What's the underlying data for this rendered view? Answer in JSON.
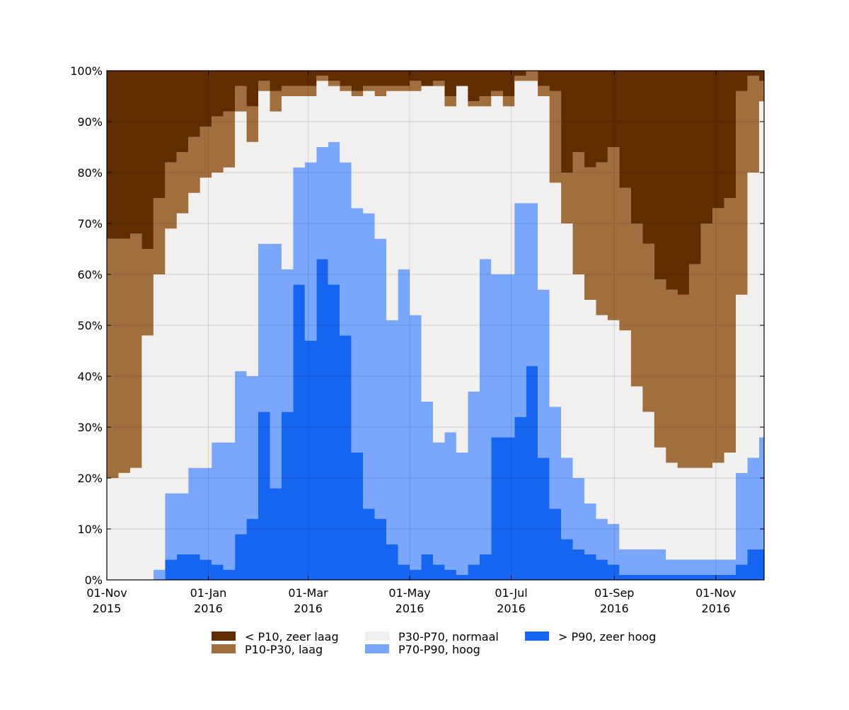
{
  "chart_data": {
    "type": "area",
    "stacked": true,
    "normalized_percent": true,
    "y_tick_labels": [
      "0%",
      "10%",
      "20%",
      "30%",
      "40%",
      "50%",
      "60%",
      "70%",
      "80%",
      "90%",
      "100%"
    ],
    "ylim": [
      0,
      100
    ],
    "xlim": [
      "2015-11-01",
      "2016-11-30"
    ],
    "x_ticks": [
      {
        "date": "2015-11-01",
        "line1": "01-Nov",
        "line2": "2015"
      },
      {
        "date": "2016-01-01",
        "line1": "01-Jan",
        "line2": "2016"
      },
      {
        "date": "2016-03-01",
        "line1": "01-Mar",
        "line2": "2016"
      },
      {
        "date": "2016-05-01",
        "line1": "01-May",
        "line2": "2016"
      },
      {
        "date": "2016-07-01",
        "line1": "01-Jul",
        "line2": "2016"
      },
      {
        "date": "2016-09-01",
        "line1": "01-Sep",
        "line2": "2016"
      },
      {
        "date": "2016-11-01",
        "line1": "01-Nov",
        "line2": "2016"
      }
    ],
    "grid": true,
    "legend_position": "bottom-center",
    "x": [
      "2015-11-01",
      "2015-11-08",
      "2015-11-15",
      "2015-11-22",
      "2015-11-29",
      "2015-12-06",
      "2015-12-13",
      "2015-12-20",
      "2015-12-27",
      "2016-01-03",
      "2016-01-10",
      "2016-01-17",
      "2016-01-24",
      "2016-01-31",
      "2016-02-07",
      "2016-02-14",
      "2016-02-21",
      "2016-02-28",
      "2016-03-06",
      "2016-03-13",
      "2016-03-20",
      "2016-03-27",
      "2016-04-03",
      "2016-04-10",
      "2016-04-17",
      "2016-04-24",
      "2016-05-01",
      "2016-05-08",
      "2016-05-15",
      "2016-05-22",
      "2016-05-29",
      "2016-06-05",
      "2016-06-12",
      "2016-06-19",
      "2016-06-26",
      "2016-07-03",
      "2016-07-10",
      "2016-07-17",
      "2016-07-24",
      "2016-07-31",
      "2016-08-07",
      "2016-08-14",
      "2016-08-21",
      "2016-08-28",
      "2016-09-04",
      "2016-09-11",
      "2016-09-18",
      "2016-09-25",
      "2016-10-02",
      "2016-10-09",
      "2016-10-16",
      "2016-10-23",
      "2016-10-30",
      "2016-11-06",
      "2016-11-13",
      "2016-11-20",
      "2016-11-27"
    ],
    "series": [
      {
        "name": "> P90, zeer hoog",
        "color": "#1565f0",
        "values": [
          0,
          0,
          0,
          0,
          0,
          4,
          5,
          5,
          4,
          3,
          2,
          9,
          12,
          33,
          18,
          33,
          58,
          47,
          63,
          58,
          48,
          25,
          14,
          12,
          7,
          3,
          2,
          5,
          3,
          2,
          1,
          3,
          5,
          28,
          28,
          32,
          42,
          24,
          14,
          8,
          6,
          5,
          4,
          3,
          1,
          1,
          1,
          1,
          1,
          1,
          1,
          1,
          1,
          1,
          3,
          6,
          6
        ]
      },
      {
        "name": "P70-P90, hoog",
        "color": "#7aa6fb",
        "values": [
          0,
          0,
          0,
          0,
          2,
          13,
          12,
          17,
          18,
          24,
          25,
          32,
          28,
          33,
          48,
          28,
          23,
          35,
          22,
          28,
          34,
          48,
          58,
          55,
          44,
          58,
          50,
          30,
          24,
          27,
          24,
          34,
          58,
          32,
          32,
          42,
          32,
          33,
          20,
          16,
          14,
          10,
          8,
          8,
          5,
          5,
          5,
          5,
          3,
          3,
          3,
          3,
          3,
          3,
          18,
          18,
          22
        ]
      },
      {
        "name": "P30-P70, normaal",
        "color": "#f2f0ef",
        "values": [
          20,
          21,
          22,
          48,
          58,
          52,
          55,
          54,
          57,
          53,
          54,
          51,
          46,
          30,
          26,
          34,
          14,
          13,
          13,
          11,
          14,
          22,
          24,
          28,
          45,
          35,
          44,
          62,
          70,
          64,
          72,
          56,
          30,
          35,
          33,
          24,
          24,
          38,
          44,
          46,
          40,
          40,
          40,
          40,
          43,
          32,
          27,
          20,
          19,
          18,
          18,
          18,
          19,
          21,
          35,
          56,
          66
        ]
      },
      {
        "name": "P10-P30, laag",
        "color": "#a16f3e",
        "values": [
          47,
          46,
          46,
          17,
          15,
          13,
          12,
          11,
          10,
          11,
          11,
          5,
          7,
          2,
          4,
          2,
          2,
          2,
          1,
          1,
          1,
          1,
          1,
          2,
          1,
          1,
          2,
          0,
          1,
          2,
          0,
          1,
          2,
          1,
          2,
          1,
          2,
          2,
          18,
          10,
          24,
          26,
          30,
          34,
          28,
          32,
          33,
          33,
          34,
          34,
          40,
          48,
          50,
          50,
          40,
          19,
          4
        ]
      },
      {
        "name": "< P10, zeer laag",
        "color": "#612c00",
        "values": [
          33,
          33,
          32,
          35,
          25,
          18,
          16,
          13,
          11,
          9,
          8,
          3,
          7,
          2,
          4,
          3,
          3,
          3,
          1,
          2,
          3,
          4,
          3,
          3,
          3,
          3,
          2,
          3,
          2,
          5,
          3,
          6,
          5,
          4,
          5,
          1,
          0,
          3,
          4,
          20,
          16,
          19,
          18,
          15,
          23,
          30,
          34,
          41,
          43,
          44,
          38,
          30,
          27,
          25,
          4,
          1,
          2
        ]
      }
    ]
  }
}
